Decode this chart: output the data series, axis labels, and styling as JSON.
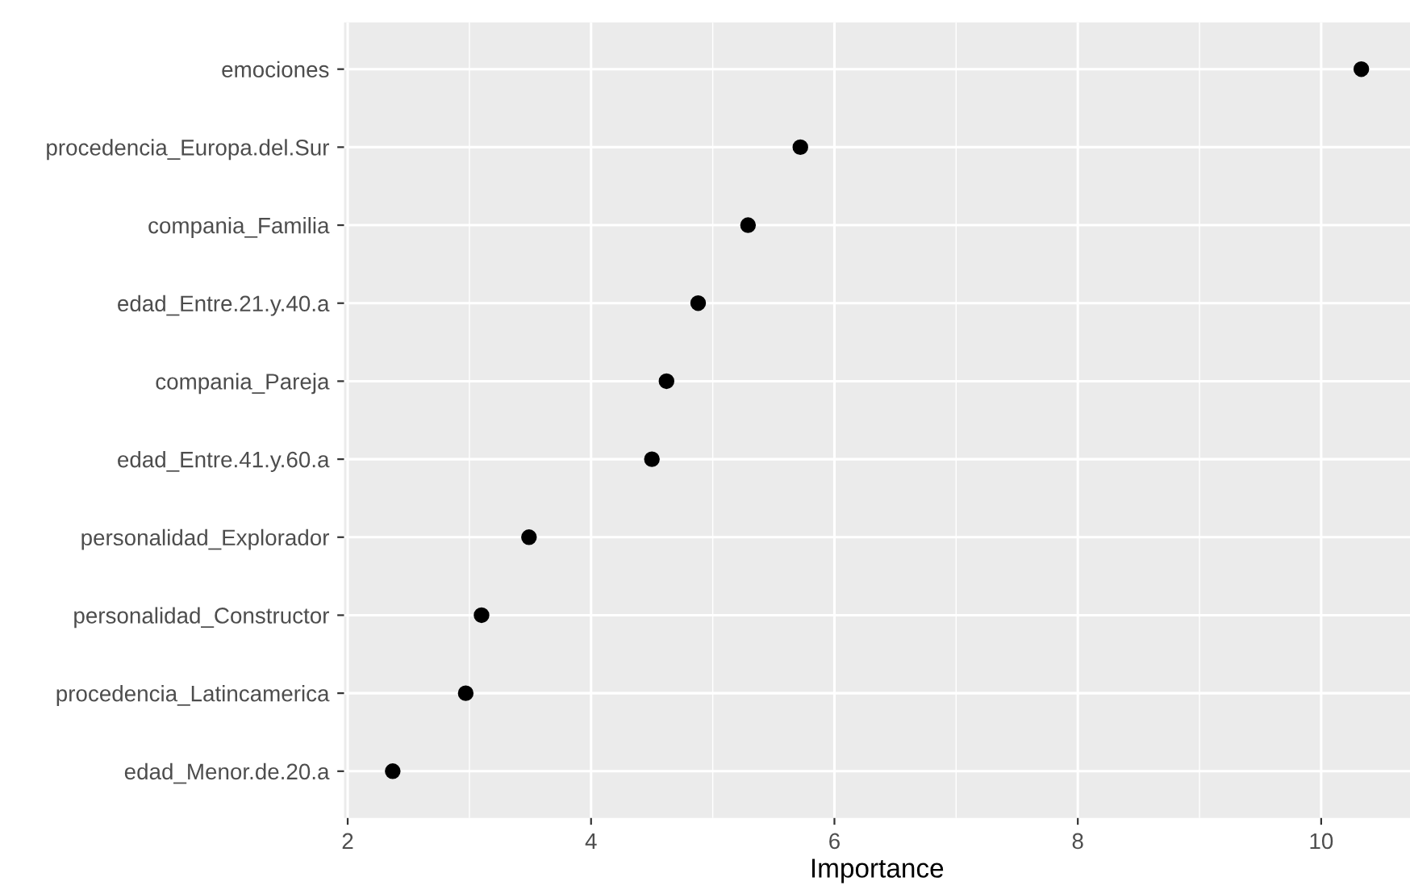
{
  "chart_data": {
    "type": "scatter",
    "xlabel": "Importance",
    "orientation": "horizontal",
    "categories": [
      "emociones",
      "procedencia_Europa.del.Sur",
      "compania_Familia",
      "edad_Entre.21.y.40.a",
      "compania_Pareja",
      "edad_Entre.41.y.60.a",
      "personalidad_Explorador",
      "personalidad_Constructor",
      "procedencia_Latincamerica",
      "edad_Menor.de.20.a"
    ],
    "series": [
      {
        "color": "#000000",
        "values": [
          10.33,
          5.72,
          5.29,
          4.88,
          4.62,
          4.5,
          3.49,
          3.1,
          2.97,
          2.37
        ]
      }
    ],
    "xlim": [
      1.97,
      10.73
    ],
    "xticks": [
      2,
      4,
      6,
      8,
      10
    ],
    "grid": true,
    "marker": "circle"
  }
}
